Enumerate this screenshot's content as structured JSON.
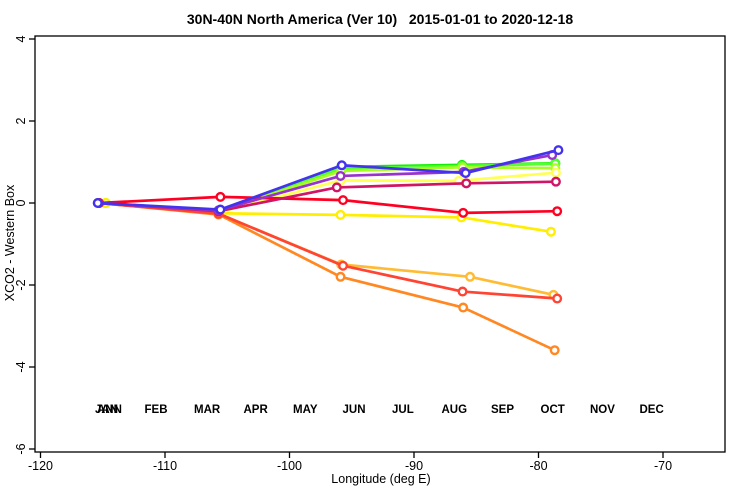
{
  "header": {
    "title": "30N-40N North America (Ver 10)   2015-01-01 to 2020-12-18"
  },
  "axes": {
    "x_label": "Longitude (deg E)",
    "y_label": "XCO2 - Western Box",
    "x_tick_labels": [
      "-120",
      "-110",
      "-100",
      "-90",
      "-80",
      "-70"
    ],
    "y_tick_labels": [
      "-6",
      "-4",
      "-2",
      "0",
      "2",
      "4"
    ]
  },
  "legend": {
    "overlay_item": {
      "label": "ANN",
      "color": "#00CC22"
    },
    "items": [
      {
        "label": "JAN",
        "color": "#11EE00"
      },
      {
        "label": "FEB",
        "color": "#55FF33"
      },
      {
        "label": "MAR",
        "color": "#AAFF22"
      },
      {
        "label": "APR",
        "color": "#FFFF55"
      },
      {
        "label": "MAY",
        "color": "#FFEE00"
      },
      {
        "label": "JUN",
        "color": "#FFBB33"
      },
      {
        "label": "JUL",
        "color": "#FF8822"
      },
      {
        "label": "AUG",
        "color": "#FF4433"
      },
      {
        "label": "SEP",
        "color": "#FF0022"
      },
      {
        "label": "OCT",
        "color": "#D01466"
      },
      {
        "label": "NOV",
        "color": "#9933CC"
      },
      {
        "label": "DEC",
        "color": "#4433EE"
      }
    ]
  },
  "chart_data": {
    "type": "line",
    "title": "30N-40N North America (Ver 10)   2015-01-01 to 2020-12-18",
    "xlabel": "Longitude (deg E)",
    "ylabel": "XCO2 - Western Box",
    "xlim": [
      -120.4,
      -65.0
    ],
    "ylim": [
      -6.1,
      4.1
    ],
    "xticks": [
      -120,
      -110,
      -100,
      -90,
      -80,
      -70
    ],
    "yticks": [
      -6,
      -4,
      -2,
      0,
      2,
      4
    ],
    "grid": false,
    "legend_position": "bottom-inside",
    "marker": "open-circle",
    "series": [
      {
        "name": "ANN",
        "color": "#00CC22",
        "x": [
          -115.3,
          -105.7,
          -95.85,
          -86.1,
          -78.65
        ],
        "y": [
          0,
          -0.19,
          0.86,
          0.91,
          0.96
        ]
      },
      {
        "name": "JAN",
        "color": "#11EE00",
        "x": [
          -115.3,
          -105.7,
          -95.85,
          -86.15,
          -78.65
        ],
        "y": [
          0,
          -0.18,
          0.88,
          0.93,
          0.97
        ]
      },
      {
        "name": "FEB",
        "color": "#55FF33",
        "x": [
          -114.75,
          -105.7,
          -95.85,
          -86.15,
          -78.65
        ],
        "y": [
          0,
          -0.2,
          0.84,
          0.9,
          0.96
        ]
      },
      {
        "name": "MAR",
        "color": "#AAFF22",
        "x": [
          -114.75,
          -105.7,
          -95.85,
          -86.1,
          -78.65
        ],
        "y": [
          0,
          -0.22,
          0.78,
          0.87,
          0.85
        ]
      },
      {
        "name": "APR",
        "color": "#FFFF55",
        "x": [
          -114.75,
          -105.7,
          -95.9,
          -86.4,
          -78.6
        ],
        "y": [
          0,
          -0.23,
          0.55,
          0.54,
          0.74
        ]
      },
      {
        "name": "MAY",
        "color": "#FFEE00",
        "x": [
          -114.75,
          -105.7,
          -95.9,
          -86.2,
          -79.0
        ],
        "y": [
          0,
          -0.25,
          -0.29,
          -0.35,
          -0.7
        ]
      },
      {
        "name": "JUN",
        "color": "#FFBB33",
        "x": [
          -115.3,
          -105.7,
          -95.85,
          -85.5,
          -78.8
        ],
        "y": [
          0,
          -0.26,
          -1.5,
          -1.8,
          -2.24
        ]
      },
      {
        "name": "JUL",
        "color": "#FF8822",
        "x": [
          -115.3,
          -105.7,
          -95.9,
          -86.05,
          -78.7
        ],
        "y": [
          0,
          -0.28,
          -1.8,
          -2.55,
          -3.59
        ]
      },
      {
        "name": "AUG",
        "color": "#FF4433",
        "x": [
          -115.3,
          -105.7,
          -95.7,
          -86.1,
          -78.5
        ],
        "y": [
          0,
          -0.26,
          -1.53,
          -2.16,
          -2.33
        ]
      },
      {
        "name": "SEP",
        "color": "#FF0022",
        "x": [
          -115.3,
          -105.55,
          -95.7,
          -86.05,
          -78.5
        ],
        "y": [
          0,
          0.15,
          0.07,
          -0.24,
          -0.2
        ]
      },
      {
        "name": "OCT",
        "color": "#D01466",
        "x": [
          -115.3,
          -105.7,
          -96.2,
          -85.8,
          -78.6
        ],
        "y": [
          0,
          -0.2,
          0.38,
          0.48,
          0.52
        ]
      },
      {
        "name": "NOV",
        "color": "#9933CC",
        "x": [
          -115.4,
          -105.7,
          -95.9,
          -86.0,
          -78.9
        ],
        "y": [
          0,
          -0.18,
          0.66,
          0.76,
          1.17
        ]
      },
      {
        "name": "DEC",
        "color": "#4433EE",
        "x": [
          -115.4,
          -105.55,
          -95.8,
          -85.85,
          -78.4
        ],
        "y": [
          0,
          -0.16,
          0.92,
          0.73,
          1.29
        ]
      }
    ]
  }
}
